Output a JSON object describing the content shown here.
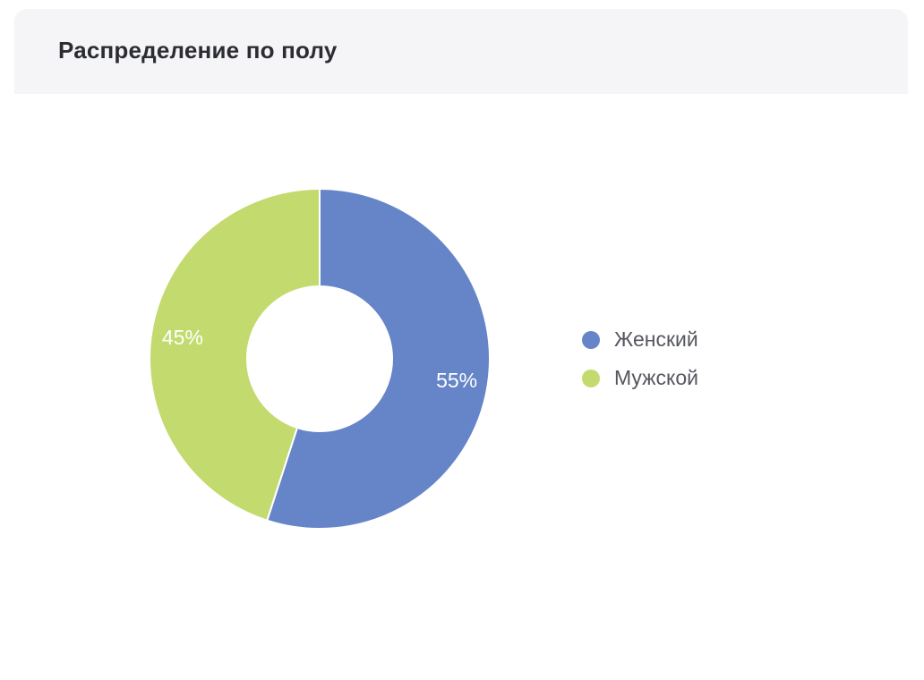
{
  "header": {
    "title": "Распределение по полу"
  },
  "chart_data": {
    "type": "pie",
    "donut": true,
    "title": "Распределение по полу",
    "categories": [
      "Женский",
      "Мужской"
    ],
    "values": [
      55,
      45
    ],
    "labels": [
      "55%",
      "45%"
    ],
    "colors": [
      "#6585c8",
      "#c3da6f"
    ],
    "legend_position": "right"
  }
}
